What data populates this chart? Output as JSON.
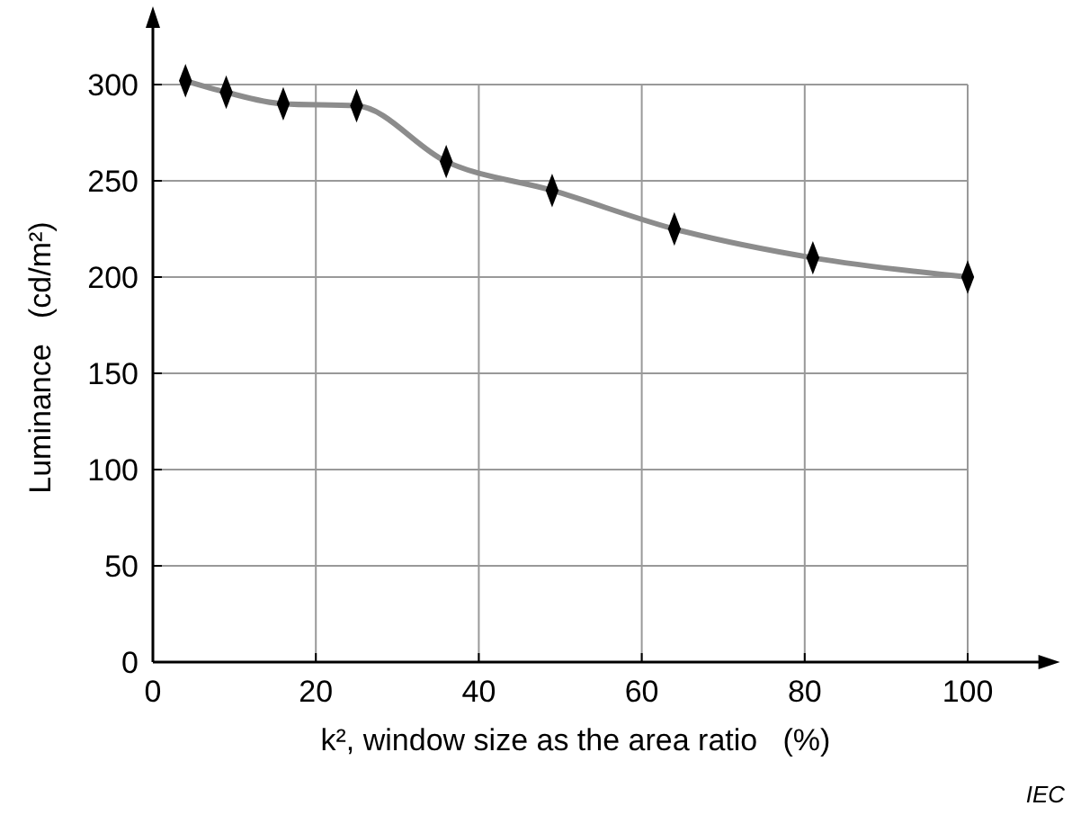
{
  "chart_data": {
    "type": "line",
    "xlabel": "k², window size as the area ratio   (%)",
    "ylabel": "Luminance   (cd/m²)",
    "xlim": [
      0,
      110
    ],
    "ylim": [
      0,
      335
    ],
    "xticks": [
      0,
      20,
      40,
      60,
      80,
      100
    ],
    "yticks": [
      0,
      50,
      100,
      150,
      200,
      250,
      300
    ],
    "grid": true,
    "marker": "diamond",
    "line_style": "solid",
    "series": [
      {
        "color": "#8c8c8c",
        "x": [
          4,
          9,
          16,
          25,
          36,
          49,
          64,
          81,
          100
        ],
        "values": [
          302,
          296,
          290,
          289,
          260,
          245,
          225,
          210,
          200
        ]
      }
    ],
    "annotations": [
      "IEC"
    ]
  }
}
